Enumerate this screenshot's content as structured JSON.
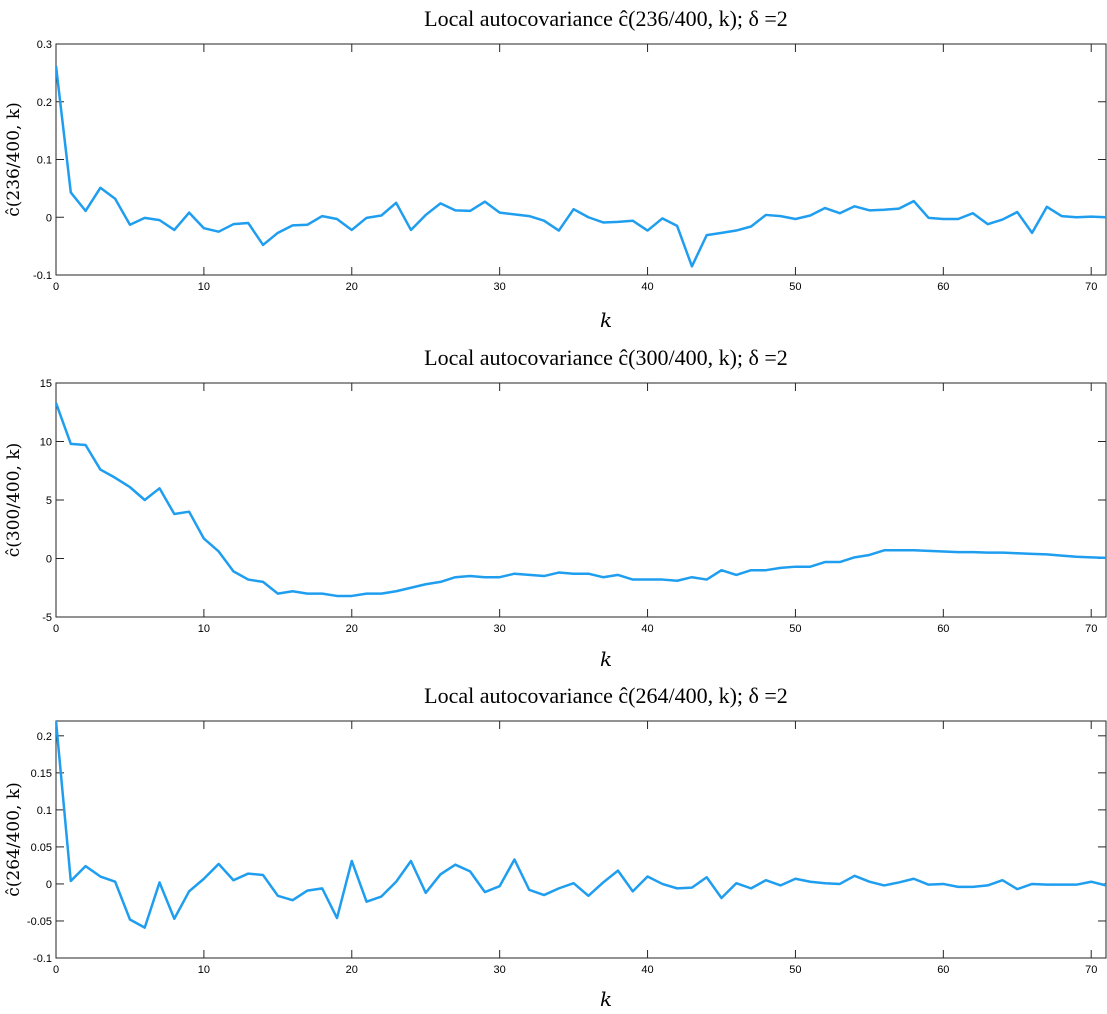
{
  "colors": {
    "line": "#1f9ef0",
    "axes": "#262626",
    "background": "#ffffff"
  },
  "chart_data": [
    {
      "type": "line",
      "title": "Local autocovariance ĉ(236/400, k);   δ =2",
      "xlabel": "k",
      "ylabel": "ĉ(236/400, k)",
      "xlim": [
        0,
        71
      ],
      "ylim": [
        -0.1,
        0.3
      ],
      "xticks": [
        0,
        10,
        20,
        30,
        40,
        50,
        60,
        70
      ],
      "xtick_labels": [
        "0",
        "10",
        "20",
        "30",
        "40",
        "50",
        "60",
        "70"
      ],
      "yticks": [
        -0.1,
        0,
        0.1,
        0.2,
        0.3
      ],
      "ytick_labels": [
        "-0.1",
        "0",
        "0.1",
        "0.2",
        "0.3"
      ],
      "x": [
        0,
        1,
        2,
        3,
        4,
        5,
        6,
        7,
        8,
        9,
        10,
        11,
        12,
        13,
        14,
        15,
        16,
        17,
        18,
        19,
        20,
        21,
        22,
        23,
        24,
        25,
        26,
        27,
        28,
        29,
        30,
        31,
        32,
        33,
        34,
        35,
        36,
        37,
        38,
        39,
        40,
        41,
        42,
        43,
        44,
        45,
        46,
        47,
        48,
        49,
        50,
        51,
        52,
        53,
        54,
        55,
        56,
        57,
        58,
        59,
        60,
        61,
        62,
        63,
        64,
        65,
        66,
        67,
        68,
        69,
        70,
        71
      ],
      "series": [
        {
          "values": [
            0.262,
            0.043,
            0.011,
            0.051,
            0.032,
            -0.013,
            -0.001,
            -0.005,
            -0.022,
            0.008,
            -0.019,
            -0.025,
            -0.012,
            -0.01,
            -0.048,
            -0.027,
            -0.014,
            -0.013,
            0.002,
            -0.003,
            -0.022,
            -0.001,
            0.003,
            0.025,
            -0.022,
            0.004,
            0.024,
            0.012,
            0.011,
            0.027,
            0.008,
            0.005,
            0.002,
            -0.006,
            -0.023,
            0.014,
            0.0,
            -0.009,
            -0.008,
            -0.006,
            -0.023,
            -0.002,
            -0.015,
            -0.085,
            -0.031,
            -0.027,
            -0.023,
            -0.016,
            0.004,
            0.002,
            -0.003,
            0.003,
            0.016,
            0.007,
            0.019,
            0.012,
            0.013,
            0.015,
            0.028,
            -0.001,
            -0.003,
            -0.003,
            0.007,
            -0.012,
            -0.004,
            0.009,
            -0.027,
            0.018,
            0.002,
            0.0,
            0.001,
            0.0
          ]
        }
      ]
    },
    {
      "type": "line",
      "title": "Local autocovariance ĉ(300/400, k);   δ =2",
      "xlabel": "k",
      "ylabel": "ĉ(300/400, k)",
      "xlim": [
        0,
        71
      ],
      "ylim": [
        -5,
        15
      ],
      "xticks": [
        0,
        10,
        20,
        30,
        40,
        50,
        60,
        70
      ],
      "xtick_labels": [
        "0",
        "10",
        "20",
        "30",
        "40",
        "50",
        "60",
        "70"
      ],
      "yticks": [
        -5,
        0,
        5,
        10,
        15
      ],
      "ytick_labels": [
        "-5",
        "0",
        "5",
        "10",
        "15"
      ],
      "x": [
        0,
        1,
        2,
        3,
        4,
        5,
        6,
        7,
        8,
        9,
        10,
        11,
        12,
        13,
        14,
        15,
        16,
        17,
        18,
        19,
        20,
        21,
        22,
        23,
        24,
        25,
        26,
        27,
        28,
        29,
        30,
        31,
        32,
        33,
        34,
        35,
        36,
        37,
        38,
        39,
        40,
        41,
        42,
        43,
        44,
        45,
        46,
        47,
        48,
        49,
        50,
        51,
        52,
        53,
        54,
        55,
        56,
        57,
        58,
        59,
        60,
        61,
        62,
        63,
        64,
        65,
        66,
        67,
        68,
        69,
        70,
        71
      ],
      "series": [
        {
          "values": [
            13.3,
            9.8,
            9.7,
            7.6,
            6.9,
            6.1,
            5.0,
            6.0,
            3.8,
            4.0,
            1.7,
            0.6,
            -1.1,
            -1.8,
            -2.0,
            -3.0,
            -2.8,
            -3.0,
            -3.0,
            -3.2,
            -3.2,
            -3.0,
            -3.0,
            -2.8,
            -2.5,
            -2.2,
            -2.0,
            -1.6,
            -1.5,
            -1.6,
            -1.6,
            -1.3,
            -1.4,
            -1.5,
            -1.2,
            -1.3,
            -1.3,
            -1.6,
            -1.4,
            -1.8,
            -1.8,
            -1.8,
            -1.9,
            -1.6,
            -1.8,
            -1.0,
            -1.4,
            -1.0,
            -1.0,
            -0.8,
            -0.7,
            -0.7,
            -0.3,
            -0.3,
            0.1,
            0.3,
            0.7,
            0.7,
            0.7,
            0.65,
            0.6,
            0.55,
            0.55,
            0.5,
            0.5,
            0.45,
            0.4,
            0.35,
            0.25,
            0.15,
            0.1,
            0.05
          ]
        }
      ]
    },
    {
      "type": "line",
      "title": "Local autocovariance ĉ(264/400, k);   δ =2",
      "xlabel": "k",
      "ylabel": "ĉ(264/400, k)",
      "xlim": [
        0,
        71
      ],
      "ylim": [
        -0.1,
        0.22
      ],
      "xticks": [
        0,
        10,
        20,
        30,
        40,
        50,
        60,
        70
      ],
      "xtick_labels": [
        "0",
        "10",
        "20",
        "30",
        "40",
        "50",
        "60",
        "70"
      ],
      "yticks": [
        -0.1,
        -0.05,
        0,
        0.05,
        0.1,
        0.15,
        0.2
      ],
      "ytick_labels": [
        "-0.1",
        "-0.05",
        "0",
        "0.05",
        "0.1",
        "0.15",
        "0.2"
      ],
      "x": [
        0,
        1,
        2,
        3,
        4,
        5,
        6,
        7,
        8,
        9,
        10,
        11,
        12,
        13,
        14,
        15,
        16,
        17,
        18,
        19,
        20,
        21,
        22,
        23,
        24,
        25,
        26,
        27,
        28,
        29,
        30,
        31,
        32,
        33,
        34,
        35,
        36,
        37,
        38,
        39,
        40,
        41,
        42,
        43,
        44,
        45,
        46,
        47,
        48,
        49,
        50,
        51,
        52,
        53,
        54,
        55,
        56,
        57,
        58,
        59,
        60,
        61,
        62,
        63,
        64,
        65,
        66,
        67,
        68,
        69,
        70,
        71
      ],
      "series": [
        {
          "values": [
            0.22,
            0.004,
            0.024,
            0.01,
            0.003,
            -0.048,
            -0.059,
            0.002,
            -0.047,
            -0.01,
            0.007,
            0.027,
            0.005,
            0.014,
            0.012,
            -0.016,
            -0.022,
            -0.009,
            -0.006,
            -0.046,
            0.031,
            -0.024,
            -0.017,
            0.003,
            0.031,
            -0.012,
            0.013,
            0.026,
            0.017,
            -0.011,
            -0.003,
            0.033,
            -0.008,
            -0.015,
            -0.006,
            0.001,
            -0.016,
            0.002,
            0.018,
            -0.01,
            0.01,
            0.0,
            -0.006,
            -0.005,
            0.009,
            -0.019,
            0.001,
            -0.006,
            0.005,
            -0.002,
            0.007,
            0.003,
            0.001,
            0.0,
            0.011,
            0.003,
            -0.002,
            0.002,
            0.007,
            -0.001,
            0.0,
            -0.004,
            -0.004,
            -0.002,
            0.005,
            -0.007,
            0.0,
            -0.001,
            -0.001,
            -0.001,
            0.003,
            -0.002
          ]
        }
      ]
    }
  ]
}
